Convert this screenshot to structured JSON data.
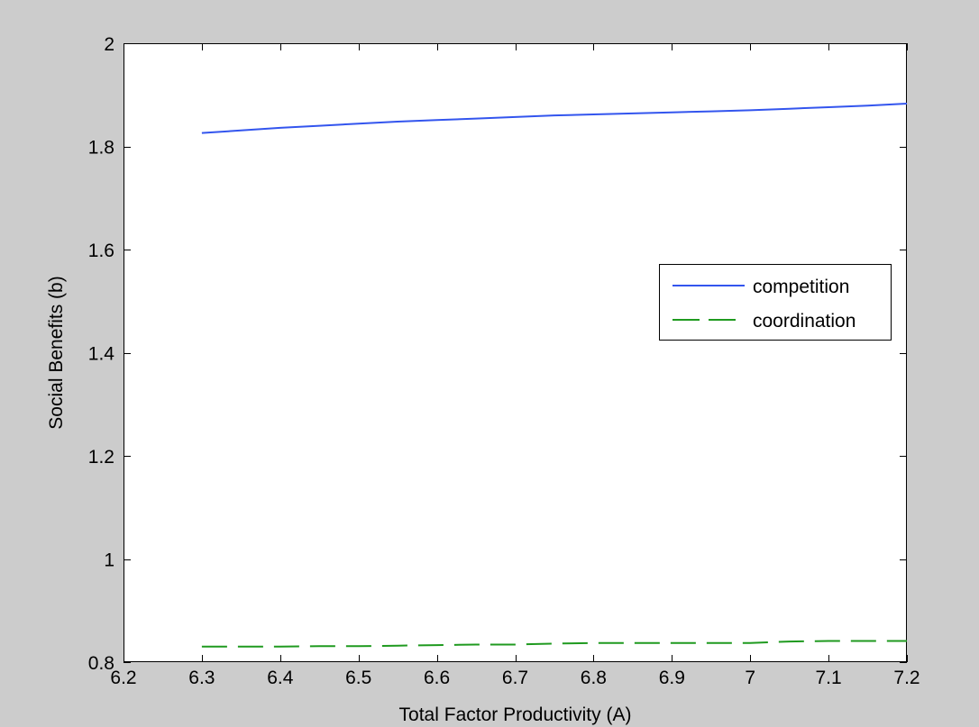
{
  "chart_data": {
    "type": "line",
    "title": "",
    "xlabel": "Total Factor Productivity (A)",
    "ylabel": "Social Benefits (b)",
    "xlim": [
      6.2,
      7.2
    ],
    "ylim": [
      0.8,
      2.0
    ],
    "xticks": [
      6.2,
      6.3,
      6.4,
      6.5,
      6.6,
      6.7,
      6.8,
      6.9,
      7.0,
      7.1,
      7.2
    ],
    "xtick_labels": [
      "6.2",
      "6.3",
      "6.4",
      "6.5",
      "6.6",
      "6.7",
      "6.8",
      "6.9",
      "7",
      "7.1",
      "7.2"
    ],
    "yticks": [
      0.8,
      1.0,
      1.2,
      1.4,
      1.6,
      1.8,
      2.0
    ],
    "ytick_labels": [
      "0.8",
      "1",
      "1.2",
      "1.4",
      "1.6",
      "1.8",
      "2"
    ],
    "grid": false,
    "legend_position": "right",
    "series": [
      {
        "name": "competition",
        "color": "#3355ee",
        "style": "solid",
        "x": [
          6.3,
          6.35,
          6.4,
          6.45,
          6.5,
          6.55,
          6.6,
          6.65,
          6.7,
          6.75,
          6.8,
          6.85,
          6.9,
          6.95,
          7.0,
          7.05,
          7.1,
          7.15,
          7.2
        ],
        "y": [
          1.826,
          1.831,
          1.836,
          1.84,
          1.844,
          1.848,
          1.851,
          1.854,
          1.857,
          1.86,
          1.862,
          1.864,
          1.866,
          1.868,
          1.87,
          1.873,
          1.876,
          1.879,
          1.883
        ]
      },
      {
        "name": "coordination",
        "color": "#1f9a1f",
        "style": "dashed",
        "x": [
          6.3,
          6.35,
          6.4,
          6.45,
          6.5,
          6.55,
          6.6,
          6.65,
          6.7,
          6.75,
          6.8,
          6.85,
          6.9,
          6.95,
          7.0,
          7.05,
          7.1,
          7.15,
          7.2
        ],
        "y": [
          0.83,
          0.83,
          0.83,
          0.831,
          0.831,
          0.832,
          0.833,
          0.834,
          0.834,
          0.836,
          0.837,
          0.837,
          0.837,
          0.837,
          0.837,
          0.84,
          0.841,
          0.841,
          0.841
        ]
      }
    ]
  }
}
